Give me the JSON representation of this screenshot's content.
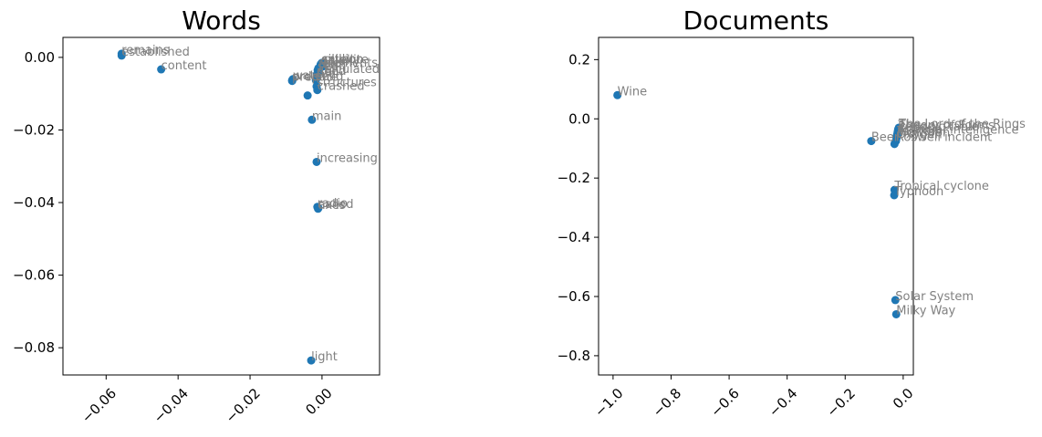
{
  "chart_data": [
    {
      "type": "scatter",
      "title": "Words",
      "xlabel": "",
      "ylabel": "",
      "xlim": [
        -0.072,
        0.016
      ],
      "ylim": [
        -0.0875,
        0.0055
      ],
      "xticks": [
        -0.06,
        -0.04,
        -0.02,
        0.0
      ],
      "xtick_labels": [
        "−0.06",
        "−0.04",
        "−0.02",
        "0.00"
      ],
      "yticks": [
        0.0,
        -0.02,
        -0.04,
        -0.06,
        -0.08
      ],
      "ytick_labels": [
        "0.00",
        "−0.02",
        "−0.04",
        "−0.06",
        "−0.08"
      ],
      "xtick_rotation": 45,
      "grid": false,
      "points": [
        {
          "label": "remains",
          "x": -0.0557,
          "y": 0.001
        },
        {
          "label": "established",
          "x": -0.0557,
          "y": 0.0005
        },
        {
          "label": "content",
          "x": -0.0447,
          "y": -0.0033
        },
        {
          "label": "silver",
          "x": 0.0,
          "y": -0.0015
        },
        {
          "label": "satellite",
          "x": -0.0002,
          "y": -0.0017
        },
        {
          "label": "million",
          "x": 0.0005,
          "y": -0.0015
        },
        {
          "label": "galaxy",
          "x": -0.0004,
          "y": -0.002
        },
        {
          "label": "elements",
          "x": 0.0002,
          "y": -0.0025
        },
        {
          "label": "form",
          "x": -0.001,
          "y": -0.003
        },
        {
          "label": "seen",
          "x": -0.0012,
          "y": -0.0035
        },
        {
          "label": "calculated",
          "x": -0.001,
          "y": -0.0043
        },
        {
          "label": "need",
          "x": -0.0015,
          "y": -0.0048
        },
        {
          "label": "order",
          "x": -0.0083,
          "y": -0.0063
        },
        {
          "label": "prepare",
          "x": -0.0083,
          "y": -0.0065
        },
        {
          "label": "water",
          "x": -0.0081,
          "y": -0.006
        },
        {
          "label": "solid",
          "x": -0.0017,
          "y": -0.0063
        },
        {
          "label": "fuel",
          "x": -0.0015,
          "y": -0.0055
        },
        {
          "label": "structures",
          "x": -0.0015,
          "y": -0.008
        },
        {
          "label": "crashed",
          "x": -0.0013,
          "y": -0.009
        },
        {
          "label": "",
          "x": -0.004,
          "y": -0.0105
        },
        {
          "label": "main",
          "x": -0.0028,
          "y": -0.0172
        },
        {
          "label": "increasing",
          "x": -0.0015,
          "y": -0.0288
        },
        {
          "label": "radio",
          "x": -0.0013,
          "y": -0.0412
        },
        {
          "label": "called",
          "x": -0.001,
          "y": -0.0415
        },
        {
          "label": "axes",
          "x": -0.0011,
          "y": -0.0417
        },
        {
          "label": "light",
          "x": -0.003,
          "y": -0.0835
        }
      ]
    },
    {
      "type": "scatter",
      "title": "Documents",
      "xlabel": "",
      "ylabel": "",
      "xlim": [
        -1.05,
        0.035
      ],
      "ylim": [
        -0.865,
        0.275
      ],
      "xticks": [
        -1.0,
        -0.8,
        -0.6,
        -0.4,
        -0.2,
        0.0
      ],
      "xtick_labels": [
        "−1.0",
        "−0.8",
        "−0.6",
        "−0.4",
        "−0.2",
        "0.0"
      ],
      "yticks": [
        0.2,
        0.0,
        -0.2,
        -0.4,
        -0.6,
        -0.8
      ],
      "ytick_labels": [
        "0.2",
        "0.0",
        "−0.2",
        "−0.4",
        "−0.6",
        "−0.8"
      ],
      "xtick_rotation": 45,
      "grid": false,
      "points": [
        {
          "label": "Wine",
          "x": -0.985,
          "y": 0.08
        },
        {
          "label": "The Lord of the Rings",
          "x": -0.015,
          "y": -0.03
        },
        {
          "label": "Theory of Forms",
          "x": -0.017,
          "y": -0.035
        },
        {
          "label": "Periodic table",
          "x": -0.018,
          "y": -0.04
        },
        {
          "label": "Cheese",
          "x": -0.019,
          "y": -0.045
        },
        {
          "label": "Artificial intelligence",
          "x": -0.02,
          "y": -0.05
        },
        {
          "label": "Tsunami",
          "x": -0.021,
          "y": -0.055
        },
        {
          "label": "Monsoon",
          "x": -0.022,
          "y": -0.06
        },
        {
          "label": "Oxygen",
          "x": -0.023,
          "y": -0.065
        },
        {
          "label": "Roswell incident",
          "x": -0.025,
          "y": -0.075
        },
        {
          "label": "",
          "x": -0.03,
          "y": -0.085
        },
        {
          "label": "Beer",
          "x": -0.11,
          "y": -0.075
        },
        {
          "label": "Tropical cyclone",
          "x": -0.03,
          "y": -0.24
        },
        {
          "label": "Typhoon",
          "x": -0.031,
          "y": -0.258
        },
        {
          "label": "Solar System",
          "x": -0.027,
          "y": -0.612
        },
        {
          "label": "Milky Way",
          "x": -0.024,
          "y": -0.66
        }
      ]
    }
  ]
}
